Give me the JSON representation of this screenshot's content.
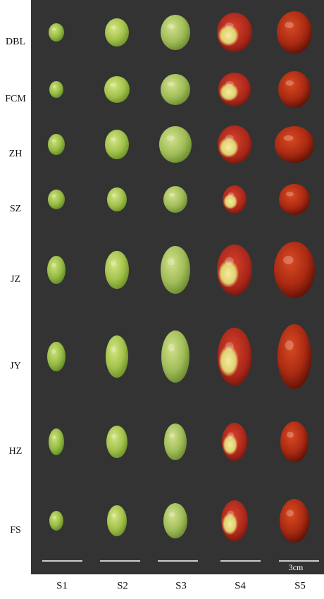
{
  "row_labels": [
    "DBL",
    "FCM",
    "ZH",
    "SZ",
    "JZ",
    "JY",
    "HZ",
    "FS"
  ],
  "column_labels": [
    "S1",
    "S2",
    "S3",
    "S4",
    "S5"
  ],
  "scale_label": "3cm"
}
